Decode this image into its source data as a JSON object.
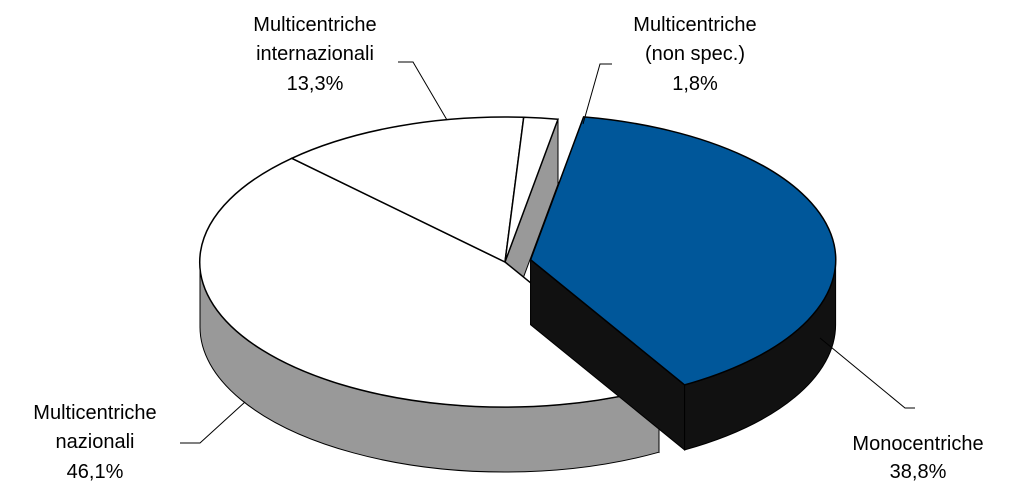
{
  "chart_data": {
    "type": "pie3d",
    "categories": [
      "Monocentriche",
      "Multicentriche nazionali",
      "Multicentriche internazionali",
      "Multicentriche (non spec.)"
    ],
    "values": [
      38.8,
      46.1,
      13.3,
      1.8
    ],
    "value_labels": [
      "38,8%",
      "46,1%",
      "13,3%",
      "1,8%"
    ],
    "colors": [
      "#00579a",
      "#ffffff",
      "#ffffff",
      "#ffffff"
    ],
    "side_colors": [
      "#111111",
      "#999999",
      "#999999",
      "#999999"
    ],
    "exploded": [
      true,
      false,
      false,
      false
    ]
  }
}
